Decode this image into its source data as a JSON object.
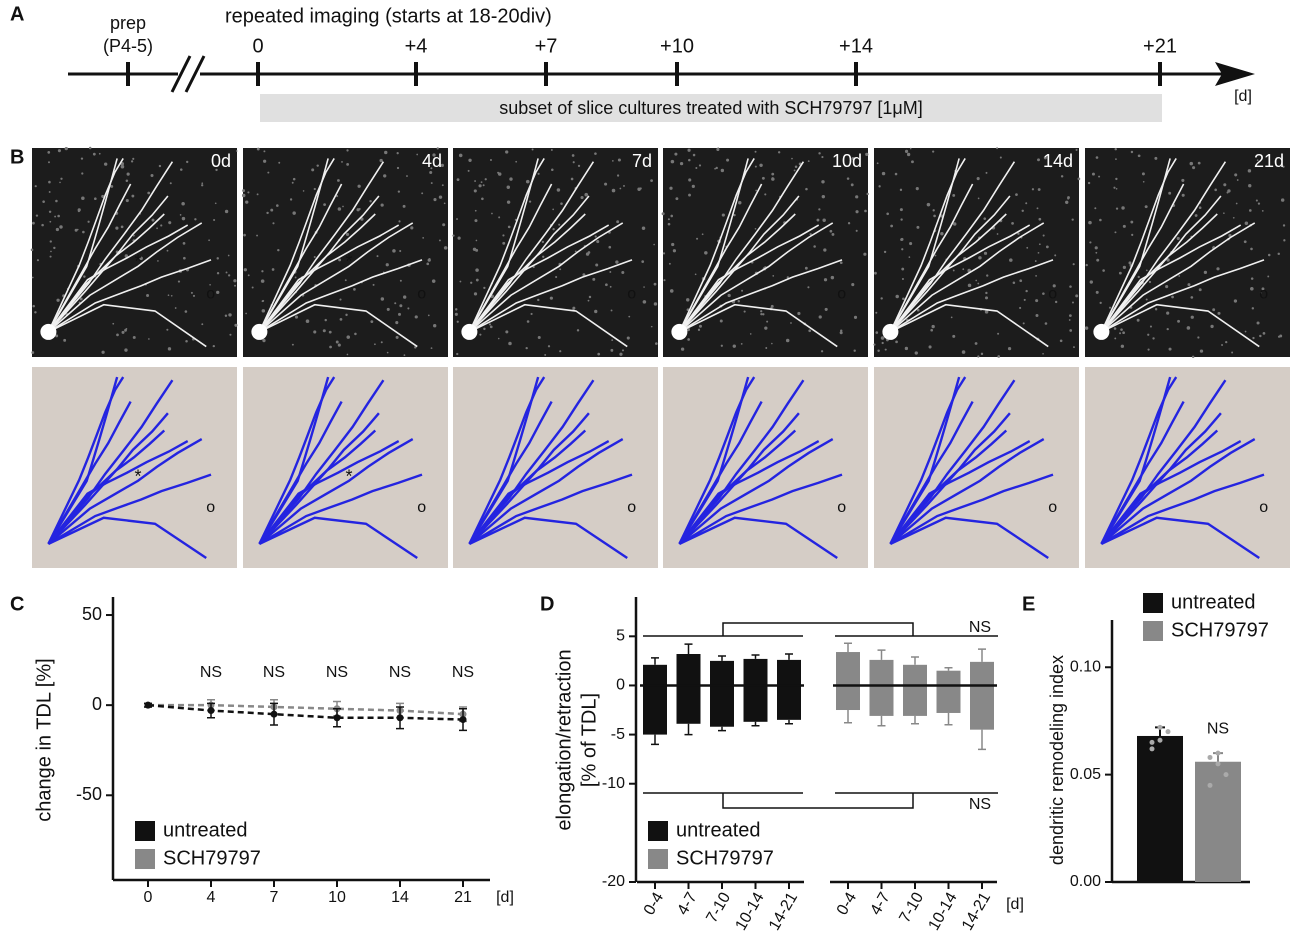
{
  "panel_labels": [
    "A",
    "B",
    "C",
    "D",
    "E"
  ],
  "timeline": {
    "prep": "prep",
    "prep_age": "(P4-5)",
    "title": "repeated imaging (starts at 18-20div)",
    "ticks": [
      "0",
      "+4",
      "+7",
      "+10",
      "+14",
      "+21"
    ],
    "unit": "[d]",
    "treatment": "subset of slice cultures treated with SCH79797 [1μM]"
  },
  "images": {
    "labels": [
      "0d",
      "4d",
      "7d",
      "10d",
      "14d",
      "21d"
    ],
    "markers": [
      "*",
      "o"
    ]
  },
  "chart_data": [
    {
      "type": "line",
      "ylabel": "change in TDL [%]",
      "xlabel": "[d]",
      "categories": [
        "0",
        "4",
        "7",
        "10",
        "14",
        "21"
      ],
      "ylim": [
        -97,
        60
      ],
      "yticks": [
        -50,
        0,
        50
      ],
      "annotations": [
        null,
        "NS",
        "NS",
        "NS",
        "NS",
        "NS"
      ],
      "series": [
        {
          "name": "untreated",
          "color": "#111111",
          "values": [
            0,
            -3,
            -5,
            -7,
            -7,
            -8
          ],
          "errors": [
            1,
            4,
            6,
            5,
            6,
            6
          ]
        },
        {
          "name": "SCH79797",
          "color": "#888888",
          "values": [
            0,
            0,
            -1,
            -2,
            -3,
            -5
          ],
          "errors": [
            1,
            3,
            4,
            4,
            4,
            4
          ]
        }
      ]
    },
    {
      "type": "bar",
      "ylabel": [
        "elongation/retraction",
        "[% of TDL]"
      ],
      "xlabel": "[d]",
      "ylim": [
        -20,
        9
      ],
      "yticks": [
        -20,
        -10,
        -5,
        0,
        5
      ],
      "annotations": [
        "NS",
        "NS"
      ],
      "groups": [
        {
          "name": "untreated",
          "color": "#111111",
          "categories": [
            "0-4",
            "4-7",
            "7-10",
            "10-14",
            "14-21"
          ],
          "elongation": [
            2.1,
            3.2,
            2.5,
            2.7,
            2.6
          ],
          "elongation_errors": [
            0.7,
            1.0,
            0.5,
            0.4,
            0.6
          ],
          "retraction": [
            -5.0,
            -3.9,
            -4.2,
            -3.7,
            -3.5
          ],
          "retraction_errors": [
            1.0,
            1.1,
            0.4,
            0.4,
            0.4
          ]
        },
        {
          "name": "SCH79797",
          "color": "#888888",
          "categories": [
            "0-4",
            "4-7",
            "7-10",
            "10-14",
            "14-21"
          ],
          "elongation": [
            3.4,
            2.6,
            2.1,
            1.5,
            2.4
          ],
          "elongation_errors": [
            0.9,
            1.0,
            0.8,
            0.3,
            1.3
          ],
          "retraction": [
            -2.5,
            -3.1,
            -3.1,
            -2.8,
            -4.5
          ],
          "retraction_errors": [
            1.3,
            1.0,
            0.8,
            1.2,
            2.0
          ]
        }
      ]
    },
    {
      "type": "bar",
      "ylabel": "dendritic remodeling index",
      "ylim": [
        0,
        0.122
      ],
      "yticks": [
        {
          "value": 0,
          "label": "0.00"
        },
        {
          "value": 0.05,
          "label": "0.05"
        },
        {
          "value": 0.1,
          "label": "0.10"
        }
      ],
      "annotations": [
        null,
        "NS"
      ],
      "series": [
        {
          "name": "untreated",
          "color": "#111111",
          "value": 0.068,
          "error": 0.004,
          "points": [
            0.065,
            0.072,
            0.07,
            0.062,
            0.066
          ]
        },
        {
          "name": "SCH79797",
          "color": "#888888",
          "value": 0.056,
          "error": 0.004,
          "points": [
            0.058,
            0.06,
            0.05,
            0.045,
            0.055
          ]
        }
      ]
    }
  ]
}
